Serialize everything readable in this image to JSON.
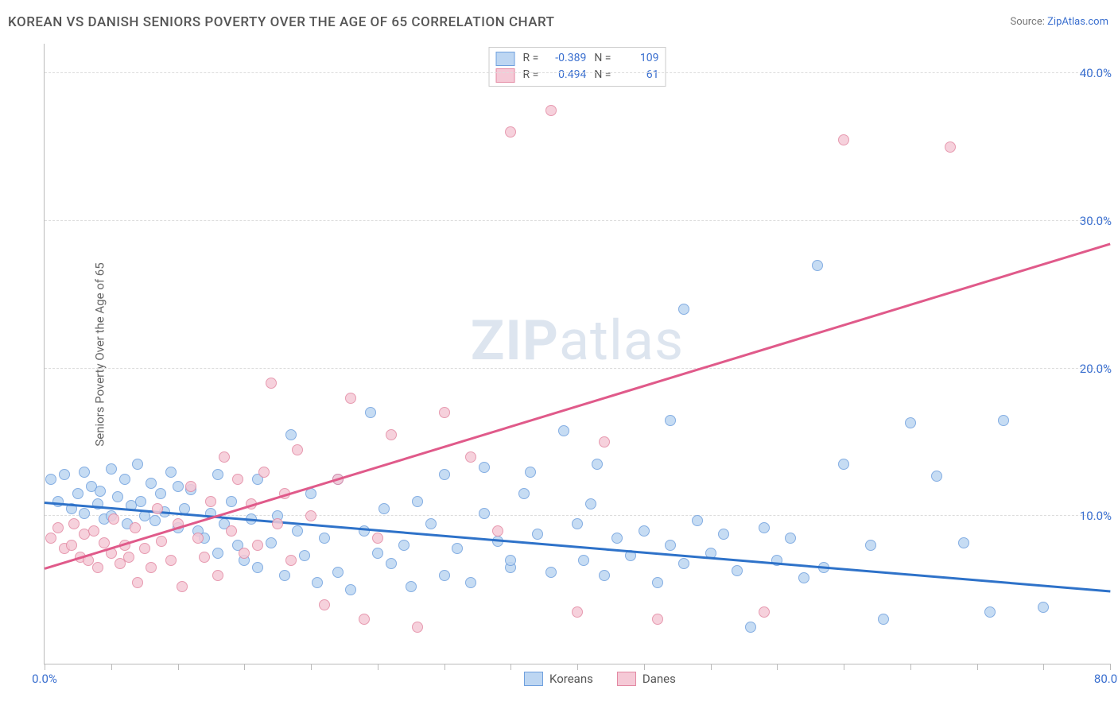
{
  "title": "KOREAN VS DANISH SENIORS POVERTY OVER THE AGE OF 65 CORRELATION CHART",
  "source_prefix": "Source: ",
  "source_link": "ZipAtlas.com",
  "ylabel": "Seniors Poverty Over the Age of 65",
  "watermark_bold": "ZIP",
  "watermark_rest": "atlas",
  "chart": {
    "type": "scatter",
    "xlim": [
      0,
      80
    ],
    "ylim": [
      0,
      42
    ],
    "x_tick_step": 5,
    "x_labels": [
      {
        "x": 0,
        "text": "0.0%"
      },
      {
        "x": 80,
        "text": "80.0%"
      }
    ],
    "y_gridlines": [
      10,
      20,
      30,
      40
    ],
    "y_labels": [
      {
        "y": 10,
        "text": "10.0%"
      },
      {
        "y": 20,
        "text": "20.0%"
      },
      {
        "y": 30,
        "text": "30.0%"
      },
      {
        "y": 40,
        "text": "40.0%"
      }
    ],
    "background_color": "#ffffff",
    "grid_color": "#dddddd",
    "axis_color": "#bbbbbb",
    "marker_radius": 7,
    "marker_border_width": 1.5,
    "series": [
      {
        "name": "Koreans",
        "fill": "#bdd6f2",
        "stroke": "#6fa0de",
        "line_color": "#2e72c9",
        "R": "-0.389",
        "N": "109",
        "trend": {
          "x1": 0,
          "y1": 11.0,
          "x2": 80,
          "y2": 5.0
        },
        "points": [
          [
            0.5,
            12.5
          ],
          [
            1,
            11
          ],
          [
            1.5,
            12.8
          ],
          [
            2,
            10.5
          ],
          [
            2.5,
            11.5
          ],
          [
            3,
            13
          ],
          [
            3,
            10.2
          ],
          [
            3.5,
            12
          ],
          [
            4,
            10.8
          ],
          [
            4.2,
            11.7
          ],
          [
            4.5,
            9.8
          ],
          [
            5,
            13.2
          ],
          [
            5,
            10
          ],
          [
            5.5,
            11.3
          ],
          [
            6,
            12.5
          ],
          [
            6.2,
            9.5
          ],
          [
            6.5,
            10.7
          ],
          [
            7,
            13.5
          ],
          [
            7.2,
            11
          ],
          [
            7.5,
            10
          ],
          [
            8,
            12.2
          ],
          [
            8.3,
            9.7
          ],
          [
            8.7,
            11.5
          ],
          [
            9,
            10.3
          ],
          [
            9.5,
            13
          ],
          [
            10,
            9.2
          ],
          [
            10,
            12
          ],
          [
            10.5,
            10.5
          ],
          [
            11,
            11.8
          ],
          [
            11.5,
            9
          ],
          [
            12,
            8.5
          ],
          [
            12.5,
            10.2
          ],
          [
            13,
            12.8
          ],
          [
            13,
            7.5
          ],
          [
            13.5,
            9.5
          ],
          [
            14,
            11
          ],
          [
            14.5,
            8
          ],
          [
            15,
            7
          ],
          [
            15.5,
            9.8
          ],
          [
            16,
            12.5
          ],
          [
            16,
            6.5
          ],
          [
            17,
            8.2
          ],
          [
            17.5,
            10
          ],
          [
            18,
            6
          ],
          [
            18.5,
            15.5
          ],
          [
            19,
            9
          ],
          [
            19.5,
            7.3
          ],
          [
            20,
            11.5
          ],
          [
            20.5,
            5.5
          ],
          [
            21,
            8.5
          ],
          [
            22,
            12.5
          ],
          [
            22,
            6.2
          ],
          [
            23,
            5
          ],
          [
            24,
            9
          ],
          [
            24.5,
            17
          ],
          [
            25,
            7.5
          ],
          [
            25.5,
            10.5
          ],
          [
            26,
            6.8
          ],
          [
            27,
            8
          ],
          [
            27.5,
            5.2
          ],
          [
            28,
            11
          ],
          [
            29,
            9.5
          ],
          [
            30,
            6
          ],
          [
            30,
            12.8
          ],
          [
            31,
            7.8
          ],
          [
            32,
            5.5
          ],
          [
            33,
            10.2
          ],
          [
            33,
            13.3
          ],
          [
            34,
            8.3
          ],
          [
            35,
            6.5
          ],
          [
            35,
            7
          ],
          [
            36,
            11.5
          ],
          [
            36.5,
            13
          ],
          [
            37,
            8.8
          ],
          [
            38,
            6.2
          ],
          [
            39,
            15.8
          ],
          [
            40,
            9.5
          ],
          [
            40.5,
            7
          ],
          [
            41,
            10.8
          ],
          [
            41.5,
            13.5
          ],
          [
            42,
            6
          ],
          [
            43,
            8.5
          ],
          [
            44,
            7.3
          ],
          [
            45,
            9
          ],
          [
            46,
            5.5
          ],
          [
            47,
            8
          ],
          [
            47,
            16.5
          ],
          [
            48,
            24
          ],
          [
            48,
            6.8
          ],
          [
            49,
            9.7
          ],
          [
            50,
            7.5
          ],
          [
            51,
            8.8
          ],
          [
            52,
            6.3
          ],
          [
            53,
            2.5
          ],
          [
            54,
            9.2
          ],
          [
            55,
            7
          ],
          [
            56,
            8.5
          ],
          [
            57,
            5.8
          ],
          [
            58,
            27
          ],
          [
            58.5,
            6.5
          ],
          [
            60,
            13.5
          ],
          [
            62,
            8
          ],
          [
            63,
            3
          ],
          [
            65,
            16.3
          ],
          [
            67,
            12.7
          ],
          [
            69,
            8.2
          ],
          [
            71,
            3.5
          ],
          [
            72,
            16.5
          ],
          [
            75,
            3.8
          ]
        ]
      },
      {
        "name": "Danes",
        "fill": "#f5c9d6",
        "stroke": "#e389a3",
        "line_color": "#e05a8a",
        "R": "0.494",
        "N": "61",
        "trend": {
          "x1": 0,
          "y1": 6.5,
          "x2": 80,
          "y2": 28.5
        },
        "points": [
          [
            0.5,
            8.5
          ],
          [
            1,
            9.2
          ],
          [
            1.5,
            7.8
          ],
          [
            2,
            8
          ],
          [
            2.2,
            9.5
          ],
          [
            2.7,
            7.2
          ],
          [
            3,
            8.8
          ],
          [
            3.3,
            7
          ],
          [
            3.7,
            9
          ],
          [
            4,
            6.5
          ],
          [
            4.5,
            8.2
          ],
          [
            5,
            7.5
          ],
          [
            5.2,
            9.8
          ],
          [
            5.7,
            6.8
          ],
          [
            6,
            8
          ],
          [
            6.3,
            7.2
          ],
          [
            6.8,
            9.2
          ],
          [
            7,
            5.5
          ],
          [
            7.5,
            7.8
          ],
          [
            8,
            6.5
          ],
          [
            8.5,
            10.5
          ],
          [
            8.8,
            8.3
          ],
          [
            9.5,
            7
          ],
          [
            10,
            9.5
          ],
          [
            10.3,
            5.2
          ],
          [
            11,
            12
          ],
          [
            11.5,
            8.5
          ],
          [
            12,
            7.2
          ],
          [
            12.5,
            11
          ],
          [
            13,
            6
          ],
          [
            13.5,
            14
          ],
          [
            14,
            9
          ],
          [
            14.5,
            12.5
          ],
          [
            15,
            7.5
          ],
          [
            15.5,
            10.8
          ],
          [
            16,
            8
          ],
          [
            16.5,
            13
          ],
          [
            17,
            19
          ],
          [
            17.5,
            9.5
          ],
          [
            18,
            11.5
          ],
          [
            18.5,
            7
          ],
          [
            19,
            14.5
          ],
          [
            20,
            10
          ],
          [
            21,
            4
          ],
          [
            22,
            12.5
          ],
          [
            23,
            18
          ],
          [
            24,
            3
          ],
          [
            25,
            8.5
          ],
          [
            26,
            15.5
          ],
          [
            28,
            2.5
          ],
          [
            30,
            17
          ],
          [
            32,
            14
          ],
          [
            34,
            9
          ],
          [
            35,
            36
          ],
          [
            38,
            37.5
          ],
          [
            40,
            3.5
          ],
          [
            42,
            15
          ],
          [
            46,
            3
          ],
          [
            54,
            3.5
          ],
          [
            60,
            35.5
          ],
          [
            68,
            35
          ]
        ]
      }
    ]
  }
}
